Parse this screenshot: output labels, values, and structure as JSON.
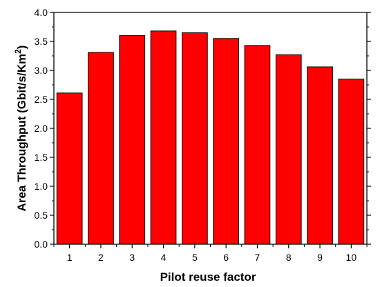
{
  "chart_data": {
    "type": "bar",
    "categories": [
      "1",
      "2",
      "3",
      "4",
      "5",
      "6",
      "7",
      "8",
      "9",
      "10"
    ],
    "values": [
      2.61,
      3.31,
      3.6,
      3.68,
      3.65,
      3.55,
      3.43,
      3.27,
      3.06,
      2.85
    ],
    "title": "",
    "xlabel": "Pilot reuse factor",
    "ylabel": {
      "main": "Area Throughput  (Gbit/s/Km",
      "superscript": "2",
      "close": ")"
    },
    "ylim": [
      0.0,
      4.0
    ],
    "yticks": [
      "0.0",
      "0.5",
      "1.0",
      "1.5",
      "2.0",
      "2.5",
      "3.0",
      "3.5",
      "4.0"
    ],
    "grid": false,
    "legend": "none",
    "colors": {
      "bar_fill": "#ff0000",
      "bar_stroke": "#000000",
      "axis": "#000000"
    }
  }
}
